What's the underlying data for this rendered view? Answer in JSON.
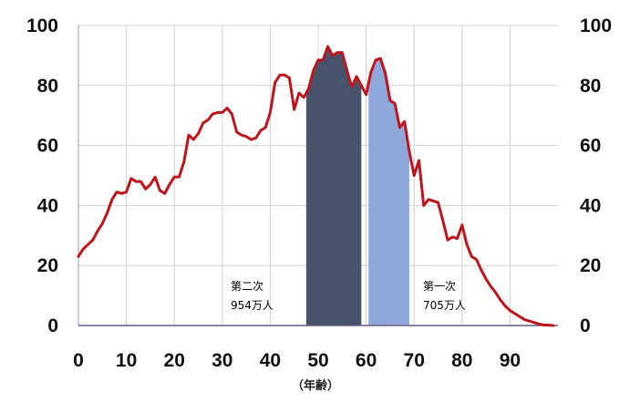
{
  "chart_data": {
    "type": "line",
    "title": "",
    "xlabel": "（年齢）",
    "ylabel": "",
    "xlim": [
      0,
      100
    ],
    "ylim": [
      0,
      100
    ],
    "x_ticks": [
      "0",
      "10",
      "20",
      "30",
      "40",
      "50",
      "60",
      "70",
      "80",
      "90"
    ],
    "y_ticks": [
      "0",
      "20",
      "40",
      "60",
      "80",
      "100"
    ],
    "grid": true,
    "series": [
      {
        "color": "#c0141c",
        "x": [
          0,
          1,
          2,
          3,
          4,
          5,
          6,
          7,
          8,
          9,
          10,
          11,
          12,
          13,
          14,
          15,
          16,
          17,
          18,
          19,
          20,
          21,
          22,
          23,
          24,
          25,
          26,
          27,
          28,
          29,
          30,
          31,
          32,
          33,
          34,
          35,
          36,
          37,
          38,
          39,
          40,
          41,
          42,
          43,
          44,
          45,
          46,
          47,
          48,
          49,
          50,
          51,
          52,
          53,
          54,
          55,
          56,
          57,
          58,
          59,
          60,
          61,
          62,
          63,
          64,
          65,
          66,
          67,
          68,
          69,
          70,
          71,
          72,
          73,
          74,
          75,
          76,
          77,
          78,
          79,
          80,
          81,
          82,
          83,
          84,
          85,
          86,
          87,
          88,
          89,
          90,
          91,
          92,
          93,
          94,
          95,
          96,
          97,
          98,
          99
        ],
        "values": [
          23,
          25.5,
          27,
          28.5,
          31.5,
          34,
          37.5,
          42,
          44.5,
          44,
          44.5,
          49,
          48,
          48,
          45.5,
          47,
          49.5,
          45,
          44,
          47,
          49.5,
          49.5,
          54.5,
          63.5,
          62,
          64,
          67.5,
          68.5,
          70.5,
          71,
          71,
          72.5,
          70.5,
          64.5,
          63.5,
          63,
          62,
          62.5,
          65,
          66,
          71,
          81,
          83.5,
          83.5,
          82.5,
          72,
          77.5,
          76,
          79,
          85,
          88.5,
          88.5,
          93,
          90,
          91,
          91,
          85,
          79.5,
          83,
          80,
          77,
          84.5,
          88.5,
          89,
          84,
          75,
          74,
          66,
          68,
          58,
          50,
          55,
          40,
          42,
          41.5,
          41,
          35,
          28.5,
          29.5,
          29,
          33.5,
          27,
          23,
          22,
          18.5,
          15.5,
          13,
          11,
          8.5,
          6.5,
          5,
          4,
          3,
          2,
          1.5,
          1,
          0.5,
          0.2,
          0.1,
          0
        ]
      }
    ],
    "highlights": [
      {
        "name": "第二次",
        "label_line1": "第二次",
        "label_line2": "954万人",
        "x_start": 47.5,
        "x_end": 59,
        "color": "#47536b"
      },
      {
        "name": "第一次",
        "label_line1": "第一次",
        "label_line2": "705万人",
        "x_start": 60.5,
        "x_end": 69,
        "color": "#8fa8dc"
      }
    ]
  }
}
